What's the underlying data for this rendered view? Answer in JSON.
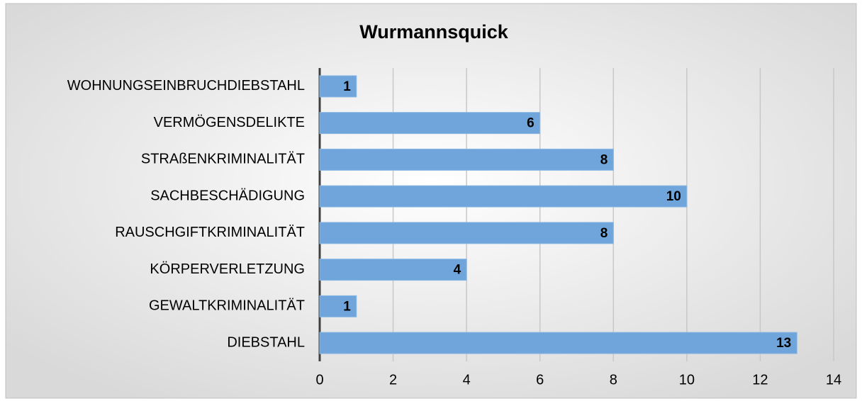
{
  "chart_data": {
    "type": "barh",
    "title": "Wurmannsquick",
    "categories": [
      "WOHNUNGSEINBRUCHDIEBSTAHL",
      "VERMÖGENSDELIKTE",
      "STRAßENKRIMINALITÄT",
      "SACHBESCHÄDIGUNG",
      "RAUSCHGIFTKRIMINALITÄT",
      "KÖRPERVERLETZUNG",
      "GEWALTKRIMINALITÄT",
      "DIEBSTAHL"
    ],
    "values": [
      1,
      6,
      8,
      10,
      8,
      4,
      1,
      13
    ],
    "color": "#6fa5da",
    "xlim": [
      0,
      14
    ],
    "xticks": [
      0,
      2,
      4,
      6,
      8,
      10,
      12,
      14
    ],
    "grid": true
  }
}
